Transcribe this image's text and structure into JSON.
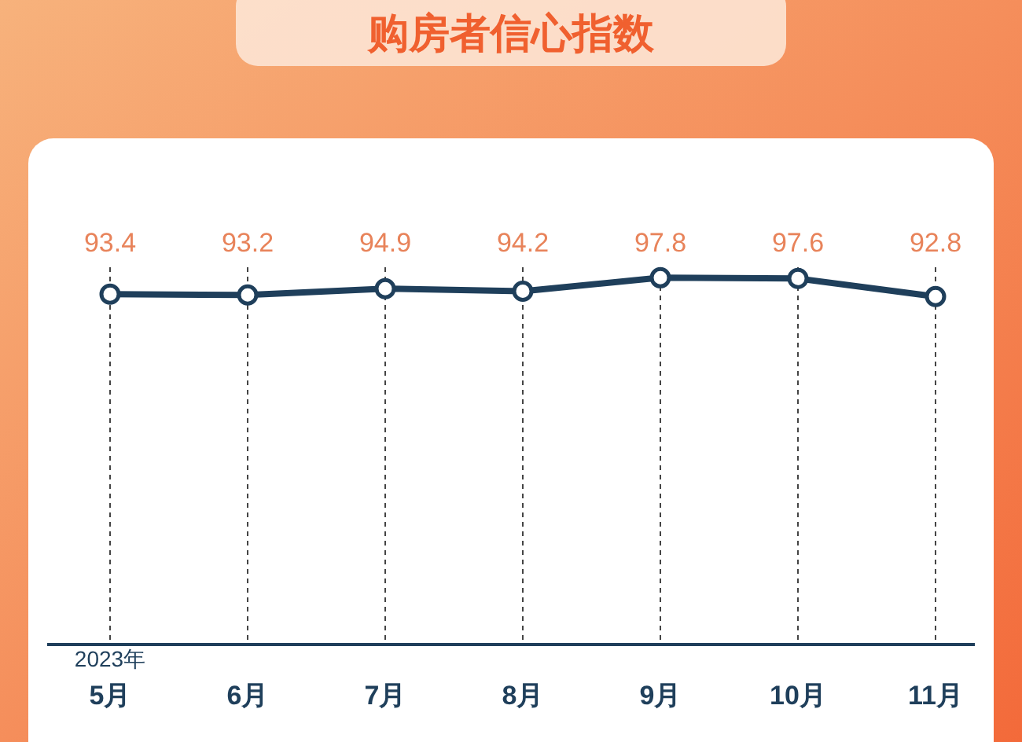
{
  "chart_data": {
    "type": "line",
    "title": "购房者信心指数",
    "categories": [
      "5月",
      "6月",
      "7月",
      "8月",
      "9月",
      "10月",
      "11月"
    ],
    "series": [
      {
        "color": "#1f3f5b",
        "values": [
          93.4,
          93.2,
          94.9,
          94.2,
          97.8,
          97.6,
          92.8
        ]
      }
    ],
    "data_labels": true,
    "marker": "circle",
    "line_style": "solid",
    "grid": "x",
    "annotations": [
      "2023年"
    ]
  }
}
